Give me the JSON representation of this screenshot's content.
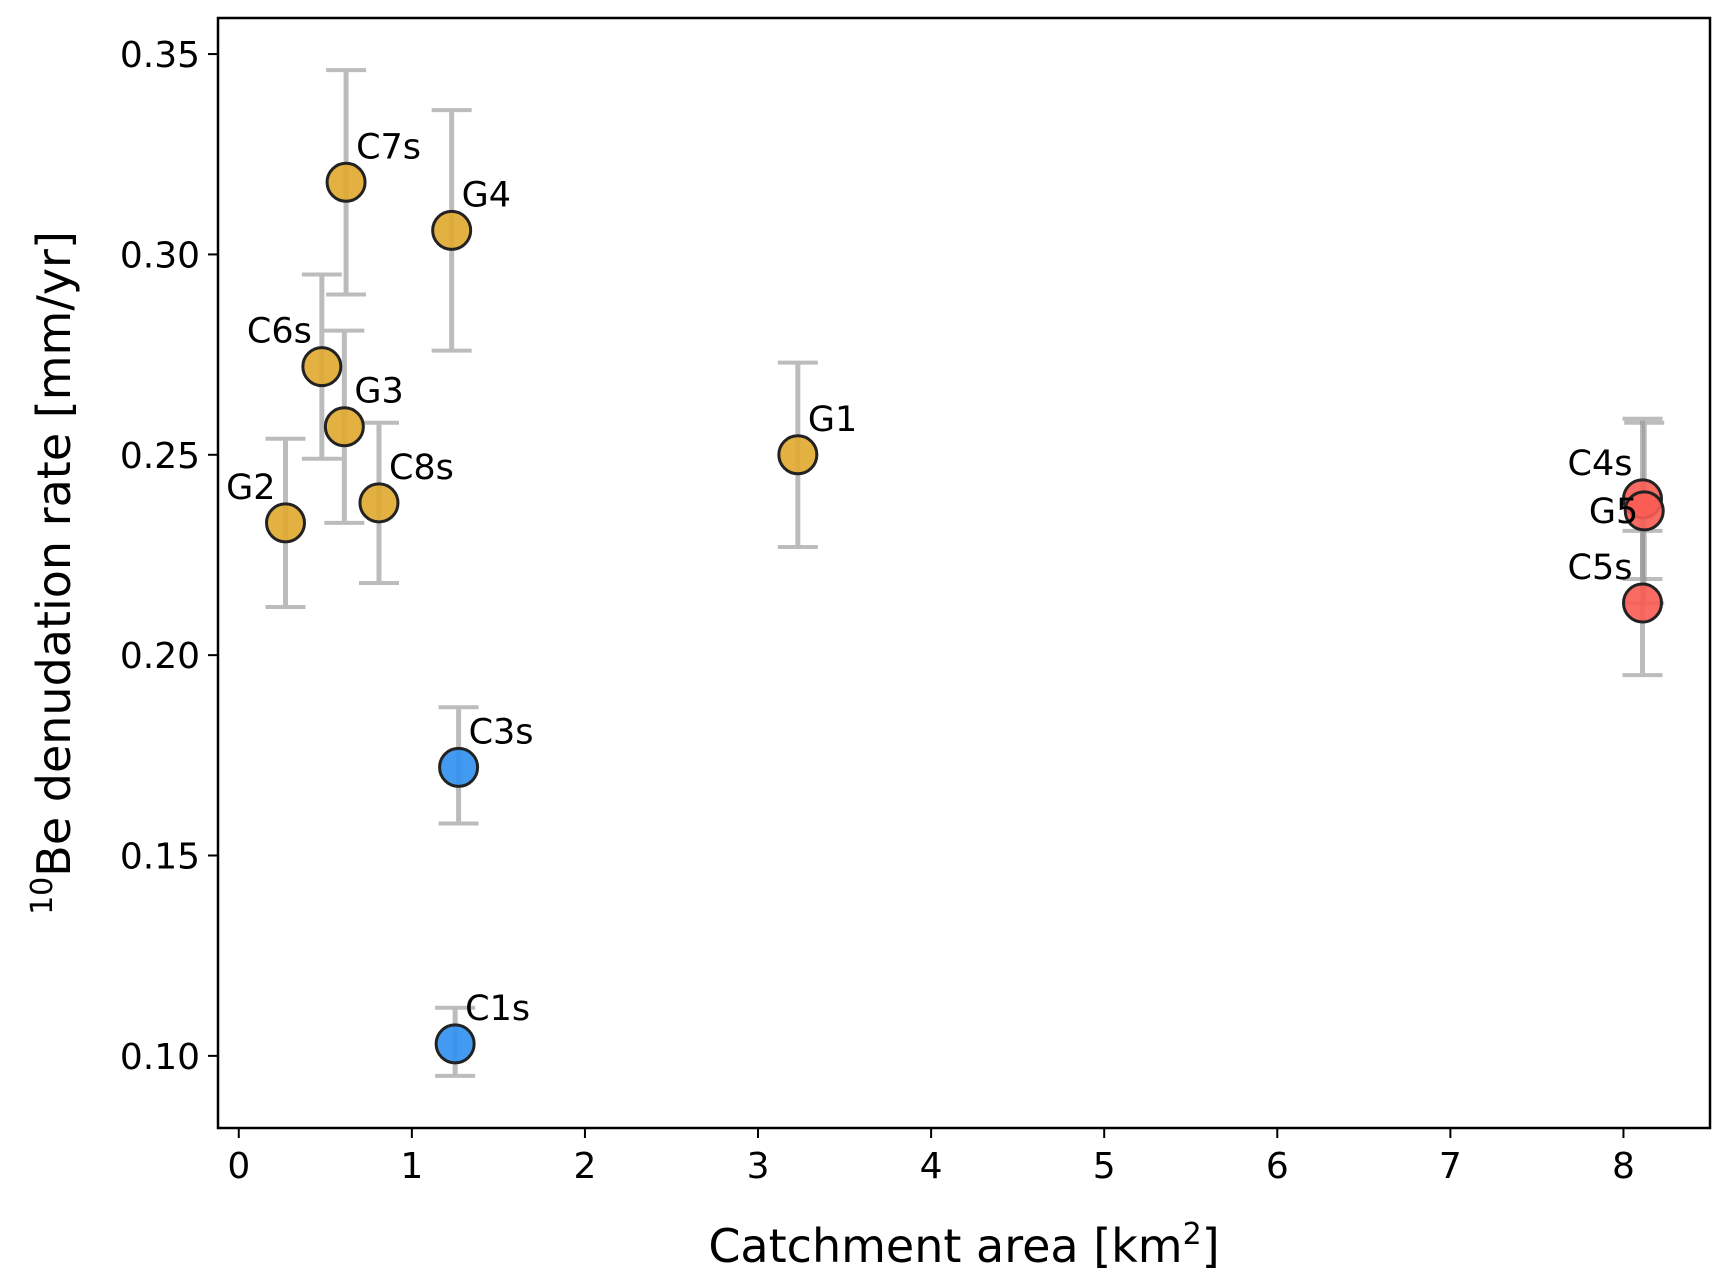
{
  "chart_data": {
    "type": "scatter",
    "title": "",
    "xlabel": {
      "main": "Catchment area [km",
      "sup": "2",
      "end": "]"
    },
    "ylabel": {
      "sup": "10",
      "main": "Be denudation rate [mm/yr]"
    },
    "xlim": [
      -0.12,
      8.5
    ],
    "ylim": [
      0.082,
      0.359
    ],
    "xticks": [
      0,
      1,
      2,
      3,
      4,
      5,
      6,
      7,
      8
    ],
    "xtick_labels": [
      "0",
      "1",
      "2",
      "3",
      "4",
      "5",
      "6",
      "7",
      "8"
    ],
    "yticks": [
      0.1,
      0.15,
      0.2,
      0.25,
      0.3,
      0.35
    ],
    "ytick_labels": [
      "0.10",
      "0.15",
      "0.20",
      "0.25",
      "0.30",
      "0.35"
    ],
    "grid": false,
    "colors": {
      "group_gold": "#E0A82E",
      "group_blue": "#2E8FF0",
      "group_red": "#FA5C52",
      "errorbar": "#999999",
      "edge": "#222222"
    },
    "points": [
      {
        "label": "G2",
        "x": 0.27,
        "y": 0.233,
        "lo": 0.212,
        "hi": 0.254,
        "group": "gold",
        "label_pos": "upper-left"
      },
      {
        "label": "C6s",
        "x": 0.48,
        "y": 0.272,
        "lo": 0.249,
        "hi": 0.295,
        "group": "gold",
        "label_pos": "upper-left"
      },
      {
        "label": "G3",
        "x": 0.61,
        "y": 0.257,
        "lo": 0.233,
        "hi": 0.281,
        "group": "gold",
        "label_pos": "upper-right"
      },
      {
        "label": "C7s",
        "x": 0.62,
        "y": 0.318,
        "lo": 0.29,
        "hi": 0.346,
        "group": "gold",
        "label_pos": "upper-right"
      },
      {
        "label": "C8s",
        "x": 0.81,
        "y": 0.238,
        "lo": 0.218,
        "hi": 0.258,
        "group": "gold",
        "label_pos": "upper-right"
      },
      {
        "label": "G4",
        "x": 1.23,
        "y": 0.306,
        "lo": 0.276,
        "hi": 0.336,
        "group": "gold",
        "label_pos": "upper-right"
      },
      {
        "label": "C1s",
        "x": 1.25,
        "y": 0.103,
        "lo": 0.095,
        "hi": 0.112,
        "group": "blue",
        "label_pos": "upper-right"
      },
      {
        "label": "C3s",
        "x": 1.27,
        "y": 0.172,
        "lo": 0.158,
        "hi": 0.187,
        "group": "blue",
        "label_pos": "upper-right"
      },
      {
        "label": "G1",
        "x": 3.23,
        "y": 0.25,
        "lo": 0.227,
        "hi": 0.273,
        "group": "gold",
        "label_pos": "upper-right"
      },
      {
        "label": "C4s",
        "x": 8.11,
        "y": 0.239,
        "lo": 0.219,
        "hi": 0.259,
        "group": "red",
        "label_pos": "upper-left"
      },
      {
        "label": "G5",
        "x": 8.12,
        "y": 0.236,
        "lo": 0.213,
        "hi": 0.258,
        "group": "red",
        "label_pos": "left"
      },
      {
        "label": "C5s",
        "x": 8.11,
        "y": 0.213,
        "lo": 0.195,
        "hi": 0.231,
        "group": "red",
        "label_pos": "upper-left"
      }
    ]
  }
}
